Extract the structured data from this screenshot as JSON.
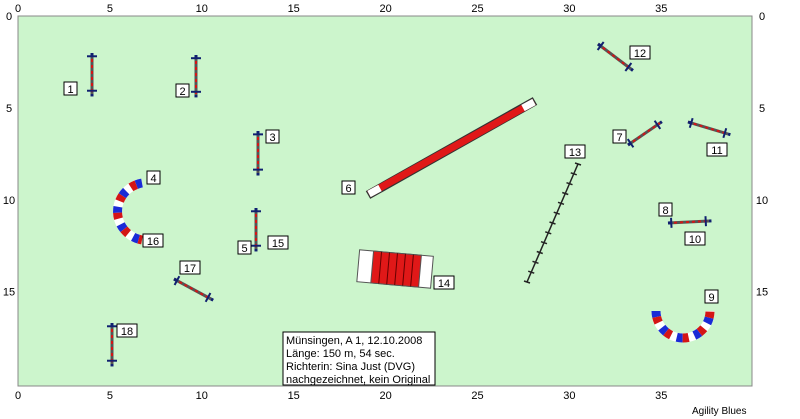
{
  "axes": {
    "x_ticks": [
      0,
      5,
      10,
      15,
      20,
      25,
      30,
      35
    ],
    "y_ticks": [
      0,
      5,
      10,
      15
    ]
  },
  "obstacles": [
    {
      "label": "1"
    },
    {
      "label": "2"
    },
    {
      "label": "3"
    },
    {
      "label": "4"
    },
    {
      "label": "5"
    },
    {
      "label": "6"
    },
    {
      "label": "7"
    },
    {
      "label": "8"
    },
    {
      "label": "9"
    },
    {
      "label": "10"
    },
    {
      "label": "11"
    },
    {
      "label": "12"
    },
    {
      "label": "13"
    },
    {
      "label": "14"
    },
    {
      "label": "15"
    },
    {
      "label": "16"
    },
    {
      "label": "17"
    },
    {
      "label": "18"
    }
  ],
  "info": {
    "lines": [
      "Münsingen, A 1, 12.10.2008",
      "Länge: 150 m, 54 sec.",
      "Richterin: Sina Just (DVG)",
      "nachgezeichnet, kein Original"
    ]
  },
  "footer": "Agility Blues"
}
